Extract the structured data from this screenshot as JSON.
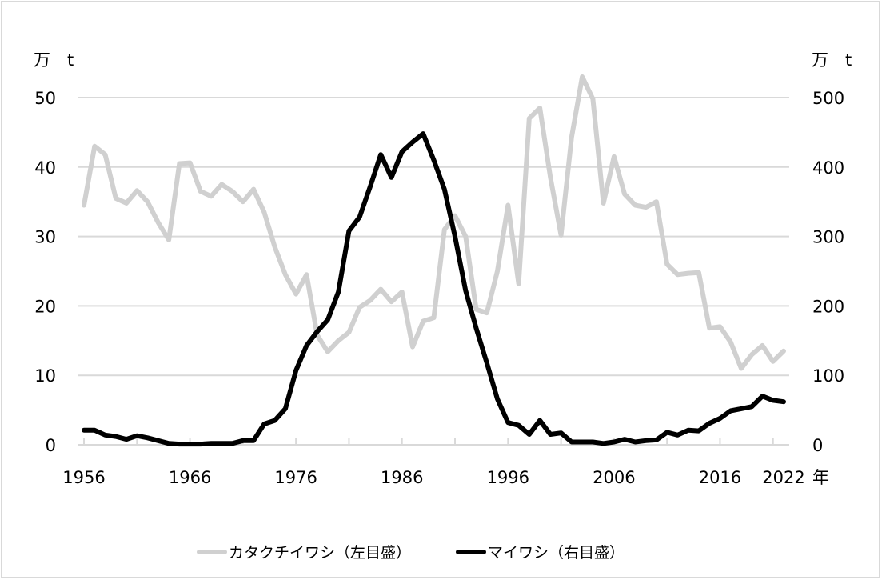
{
  "chart_data": {
    "type": "line",
    "title": "",
    "xlabel": "年",
    "ylabel_left": "万 t",
    "ylabel_right": "万 t",
    "ylim_left": [
      0,
      50
    ],
    "ylim_right": [
      0,
      500
    ],
    "yticks_left": [
      "0",
      "10",
      "20",
      "30",
      "40",
      "50"
    ],
    "yticks_right": [
      "0",
      "100",
      "200",
      "300",
      "400",
      "500"
    ],
    "xticks": [
      "1956",
      "1966",
      "1976",
      "1986",
      "1996",
      "2006",
      "2016",
      "2022"
    ],
    "grid": true,
    "legend_position": "bottom",
    "x": [
      1956,
      1957,
      1958,
      1959,
      1960,
      1961,
      1962,
      1963,
      1964,
      1965,
      1966,
      1967,
      1968,
      1969,
      1970,
      1971,
      1972,
      1973,
      1974,
      1975,
      1976,
      1977,
      1978,
      1979,
      1980,
      1981,
      1982,
      1983,
      1984,
      1985,
      1986,
      1987,
      1988,
      1989,
      1990,
      1991,
      1992,
      1993,
      1994,
      1995,
      1996,
      1997,
      1998,
      1999,
      2000,
      2001,
      2002,
      2003,
      2004,
      2005,
      2006,
      2007,
      2008,
      2009,
      2010,
      2011,
      2012,
      2013,
      2014,
      2015,
      2016,
      2017,
      2018,
      2019,
      2020,
      2021,
      2022
    ],
    "series": [
      {
        "name": "カタクチイワシ（左目盛）",
        "axis": "left",
        "color": "#d0d0d0",
        "values": [
          34.5,
          43,
          41.8,
          35.5,
          34.8,
          36.6,
          35,
          32,
          29.5,
          40.5,
          40.6,
          36.5,
          35.8,
          37.5,
          36.5,
          35,
          36.8,
          33.5,
          28.5,
          24.5,
          21.7,
          24.5,
          15.8,
          13.4,
          15,
          16.2,
          19.8,
          20.8,
          22.4,
          20.6,
          22,
          14.1,
          17.8,
          18.3,
          31,
          33,
          30,
          19.5,
          19,
          25,
          34.5,
          23.2,
          47,
          48.5,
          38.5,
          30.2,
          44.3,
          53,
          49.8,
          34.8,
          41.5,
          36.1,
          34.5,
          34.2,
          35,
          26,
          24.5,
          24.7,
          24.8,
          16.8,
          17,
          14.8,
          11,
          13,
          14.3,
          12,
          13.5
        ]
      },
      {
        "name": "マイワシ（右目盛）",
        "axis": "right",
        "color": "#000000",
        "values": [
          21,
          21,
          14,
          12,
          8,
          13,
          10,
          6,
          2,
          1,
          1,
          1,
          2,
          2,
          2,
          6,
          6,
          30,
          35,
          52,
          107,
          143,
          163,
          180,
          220,
          308,
          328,
          372,
          418,
          385,
          422,
          436,
          448,
          410,
          368,
          300,
          222,
          168,
          118,
          66,
          32,
          28,
          15,
          35,
          15,
          17,
          4,
          4,
          4,
          2,
          4,
          8,
          4,
          6,
          7,
          18,
          14,
          21,
          20,
          31,
          38,
          49,
          52,
          55,
          70,
          64,
          62
        ]
      }
    ]
  },
  "axis": {
    "left_unit": "万　t",
    "right_unit": "万　t",
    "x_unit": "年"
  },
  "legend": {
    "items": [
      {
        "label": "カタクチイワシ（左目盛）",
        "color": "#d0d0d0"
      },
      {
        "label": "マイワシ（右目盛）",
        "color": "#000000"
      }
    ]
  }
}
